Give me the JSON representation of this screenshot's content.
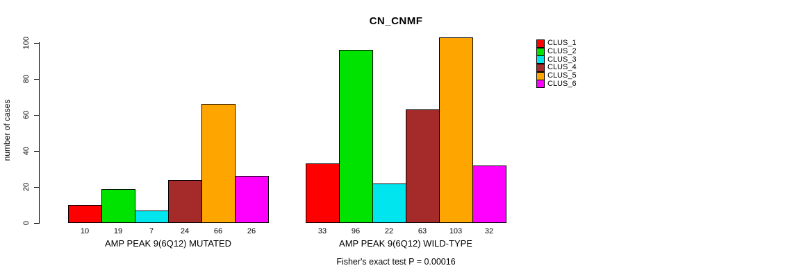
{
  "title": "CN_CNMF",
  "chart_data": {
    "type": "bar",
    "title": "CN_CNMF",
    "xlabel": "",
    "ylabel": "number of cases",
    "ylim": [
      0,
      110
    ],
    "yticks": [
      0,
      20,
      40,
      60,
      80,
      100
    ],
    "grid": false,
    "legend_position": "top-right",
    "value_labels_shown": true,
    "groups": [
      {
        "label": "AMP PEAK 9(6Q12) MUTATED",
        "values": [
          10,
          19,
          7,
          24,
          66,
          26
        ]
      },
      {
        "label": "AMP PEAK 9(6Q12) WILD-TYPE",
        "values": [
          33,
          96,
          22,
          63,
          103,
          32
        ]
      }
    ],
    "series": [
      {
        "name": "CLUS_1",
        "color": "#FF0000"
      },
      {
        "name": "CLUS_2",
        "color": "#00E300"
      },
      {
        "name": "CLUS_3",
        "color": "#00E5EE"
      },
      {
        "name": "CLUS_4",
        "color": "#A52A2A"
      },
      {
        "name": "CLUS_5",
        "color": "#FFA500"
      },
      {
        "name": "CLUS_6",
        "color": "#FF00FF"
      }
    ],
    "annotation": "Fisher's exact test P = 0.00016"
  }
}
